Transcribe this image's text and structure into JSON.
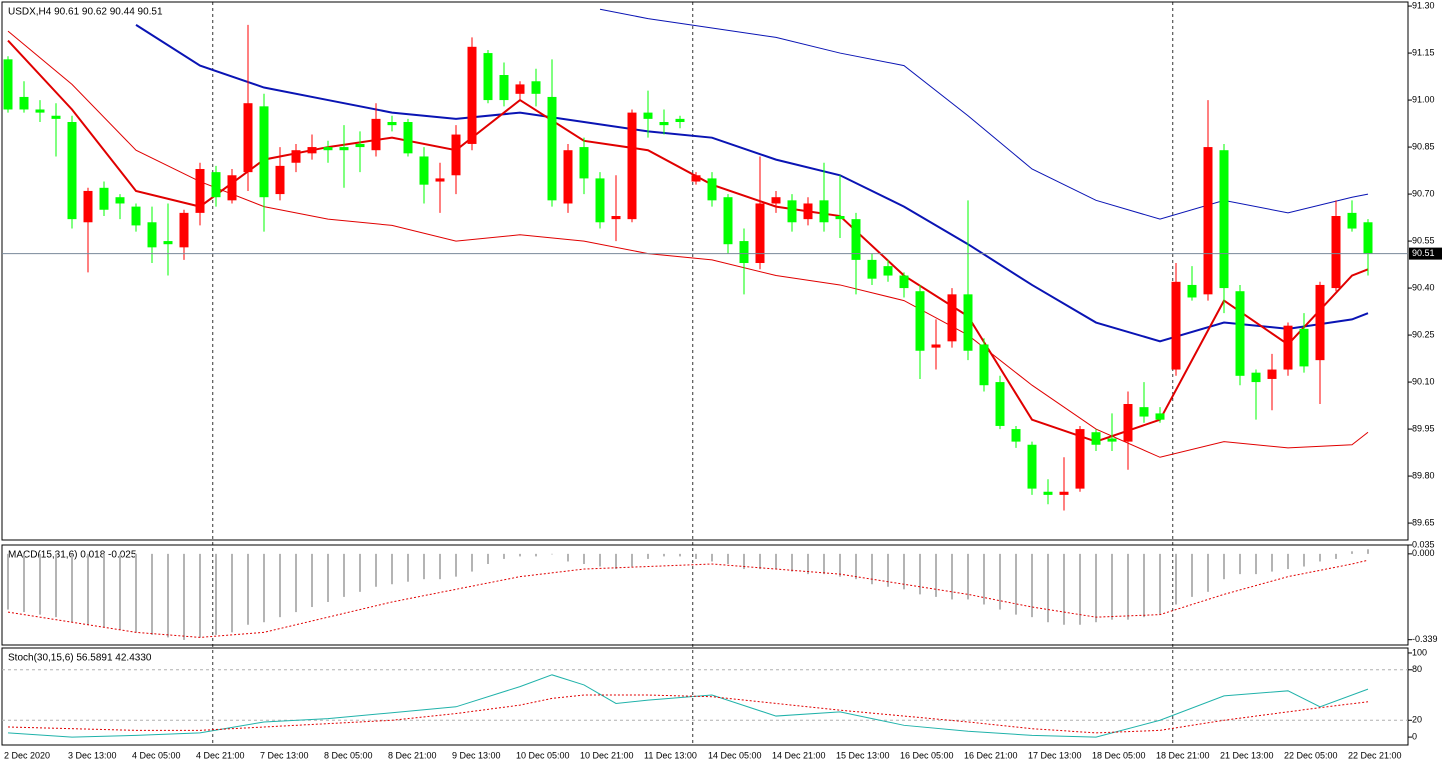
{
  "chart_data": [
    {
      "type": "candlestick",
      "title": "USDX,H4  90.61 90.62 90.44 90.51",
      "categories": [
        "2 Dec 2020",
        null,
        null,
        null,
        "3 Dec 13:00",
        null,
        null,
        null,
        "4 Dec 05:00",
        null,
        null,
        null,
        "4 Dec 21:00",
        null,
        null,
        null,
        "7 Dec 13:00",
        null,
        null,
        null,
        "8 Dec 05:00",
        null,
        null,
        null,
        "8 Dec 21:00",
        null,
        null,
        null,
        "9 Dec 13:00",
        null,
        null,
        null,
        "10 Dec 05:00",
        null,
        null,
        null,
        "10 Dec 21:00",
        null,
        null,
        null,
        "11 Dec 13:00",
        null,
        null,
        null,
        "14 Dec 05:00",
        null,
        null,
        null,
        "14 Dec 21:00",
        null,
        null,
        null,
        "15 Dec 13:00",
        null,
        null,
        null,
        "16 Dec 05:00",
        null,
        null,
        null,
        "16 Dec 21:00",
        null,
        null,
        null,
        "17 Dec 13:00",
        null,
        null,
        null,
        "18 Dec 05:00",
        null,
        null,
        null,
        "18 Dec 21:00",
        null,
        null,
        null,
        "21 Dec 13:00",
        null,
        null,
        null,
        "22 Dec 05:00",
        null,
        null,
        null,
        "22 Dec 21:00",
        null
      ],
      "open": [
        91.13,
        91.01,
        90.97,
        90.95,
        90.93,
        90.61,
        90.72,
        90.69,
        90.66,
        90.61,
        90.55,
        90.53,
        90.64,
        90.77,
        90.68,
        90.77,
        90.98,
        90.7,
        90.8,
        90.83,
        90.85,
        90.85,
        90.86,
        90.84,
        90.93,
        90.93,
        90.82,
        90.74,
        90.76,
        90.86,
        91.15,
        91.08,
        91.02,
        91.06,
        91.01,
        90.67,
        90.85,
        90.75,
        90.62,
        90.62,
        90.96,
        90.93,
        90.94,
        90.74,
        90.75,
        90.69,
        90.55,
        90.48,
        90.67,
        90.68,
        90.62,
        90.68,
        90.63,
        90.62,
        90.49,
        90.47,
        90.44,
        90.39,
        90.21,
        90.23,
        90.38,
        90.22,
        90.1,
        89.95,
        89.9,
        89.75,
        89.74,
        89.76,
        89.94,
        89.92,
        89.91,
        90.02,
        90.0,
        90.14,
        90.41,
        90.38,
        90.84,
        90.39,
        90.13,
        90.11,
        90.14,
        90.27,
        90.17,
        90.4,
        90.64,
        90.61
      ],
      "high": [
        91.14,
        91.06,
        91.0,
        90.99,
        90.95,
        90.72,
        90.74,
        90.7,
        90.67,
        90.66,
        90.67,
        90.65,
        90.8,
        90.79,
        90.78,
        91.24,
        91.02,
        90.85,
        90.86,
        90.89,
        90.87,
        90.92,
        90.9,
        90.99,
        90.95,
        90.94,
        90.85,
        90.8,
        90.92,
        91.2,
        91.16,
        91.12,
        91.06,
        91.1,
        91.13,
        90.86,
        90.88,
        90.77,
        90.76,
        90.97,
        91.03,
        90.97,
        90.95,
        90.77,
        90.77,
        90.7,
        90.59,
        90.82,
        90.71,
        90.7,
        90.69,
        90.8,
        90.76,
        90.64,
        90.51,
        90.49,
        90.45,
        90.41,
        90.3,
        90.4,
        90.68,
        90.24,
        90.12,
        89.96,
        89.91,
        89.79,
        89.86,
        89.96,
        89.95,
        90.0,
        90.07,
        90.1,
        90.02,
        90.48,
        90.47,
        91.0,
        90.86,
        90.41,
        90.14,
        90.19,
        90.29,
        90.32,
        90.42,
        90.68,
        90.68,
        90.62
      ],
      "low": [
        90.96,
        90.96,
        90.93,
        90.82,
        90.59,
        90.45,
        90.63,
        90.62,
        90.58,
        90.48,
        90.44,
        90.49,
        90.6,
        90.66,
        90.67,
        90.71,
        90.58,
        90.68,
        90.77,
        90.81,
        90.8,
        90.72,
        90.77,
        90.82,
        90.9,
        90.82,
        90.67,
        90.64,
        90.7,
        90.84,
        90.99,
        90.98,
        91.0,
        90.98,
        90.66,
        90.64,
        90.7,
        90.59,
        90.55,
        90.61,
        90.88,
        90.89,
        90.91,
        90.73,
        90.66,
        90.51,
        90.38,
        90.46,
        90.64,
        90.58,
        90.6,
        90.58,
        90.56,
        90.38,
        90.41,
        90.42,
        90.37,
        90.11,
        90.14,
        90.21,
        90.17,
        90.07,
        89.95,
        89.89,
        89.74,
        89.71,
        89.69,
        89.75,
        89.88,
        89.88,
        89.82,
        89.97,
        89.97,
        90.12,
        90.36,
        90.36,
        90.32,
        90.09,
        89.98,
        90.01,
        90.12,
        90.13,
        90.03,
        90.39,
        90.58,
        90.44
      ],
      "close": [
        90.97,
        90.97,
        90.96,
        90.94,
        90.62,
        90.71,
        90.65,
        90.67,
        90.6,
        90.53,
        90.54,
        90.64,
        90.78,
        90.69,
        90.76,
        90.99,
        90.69,
        90.79,
        90.84,
        90.85,
        90.84,
        90.84,
        90.85,
        90.94,
        90.92,
        90.83,
        90.73,
        90.75,
        90.89,
        91.17,
        91.0,
        91.0,
        91.05,
        91.02,
        90.68,
        90.84,
        90.75,
        90.61,
        90.63,
        90.96,
        90.94,
        90.92,
        90.93,
        90.76,
        90.68,
        90.54,
        90.48,
        90.67,
        90.69,
        90.61,
        90.67,
        90.61,
        90.62,
        90.49,
        90.43,
        90.44,
        90.4,
        90.2,
        90.22,
        90.38,
        90.2,
        90.09,
        89.96,
        89.91,
        89.76,
        89.74,
        89.75,
        89.95,
        89.9,
        89.91,
        90.03,
        89.99,
        89.98,
        90.42,
        90.37,
        90.85,
        90.4,
        90.12,
        90.1,
        90.14,
        90.28,
        90.15,
        90.41,
        90.63,
        90.59,
        90.51
      ],
      "up_color": "#ff0000",
      "down_color": "#00ff00",
      "lines": [
        {
          "color": "#0a14b4",
          "width": 2,
          "x": [
            8,
            12,
            16,
            20,
            24,
            28,
            32,
            36,
            40,
            44,
            48,
            52,
            56,
            60,
            64,
            68,
            72,
            76,
            80,
            84,
            85
          ],
          "values": [
            91.24,
            91.11,
            91.04,
            91.0,
            90.96,
            90.94,
            90.96,
            90.93,
            90.9,
            90.88,
            90.81,
            90.76,
            90.66,
            90.54,
            90.41,
            90.29,
            90.23,
            90.29,
            90.27,
            90.3,
            90.32
          ]
        },
        {
          "color": "#e00000",
          "width": 2,
          "x": [
            0,
            4,
            8,
            12,
            16,
            20,
            24,
            28,
            32,
            36,
            40,
            44,
            48,
            52,
            56,
            60,
            64,
            68,
            72,
            76,
            80,
            84,
            85
          ],
          "values": [
            91.19,
            90.97,
            90.71,
            90.66,
            90.81,
            90.85,
            90.88,
            90.84,
            91.0,
            90.87,
            90.84,
            90.73,
            90.66,
            90.63,
            90.44,
            90.31,
            89.98,
            89.91,
            89.98,
            90.36,
            90.22,
            90.44,
            90.46
          ]
        },
        {
          "color": "#0a14b4",
          "width": 1,
          "x": [
            37,
            40,
            44,
            48,
            52,
            56,
            60,
            64,
            68,
            72,
            76,
            80,
            84,
            85
          ],
          "values": [
            91.29,
            91.26,
            91.23,
            91.2,
            91.15,
            91.11,
            90.95,
            90.78,
            90.68,
            90.62,
            90.68,
            90.64,
            90.69,
            90.7
          ]
        },
        {
          "color": "#e00000",
          "width": 1,
          "x": [
            0,
            4,
            8,
            12,
            16,
            20,
            24,
            28,
            32,
            36,
            40,
            44,
            48,
            52,
            56,
            60,
            64,
            68,
            72,
            76,
            80,
            84,
            85
          ],
          "values": [
            91.22,
            91.05,
            90.84,
            90.74,
            90.66,
            90.62,
            90.6,
            90.55,
            90.57,
            90.55,
            90.51,
            90.49,
            90.44,
            90.41,
            90.36,
            90.25,
            90.09,
            89.95,
            89.86,
            89.91,
            89.89,
            89.9,
            89.94
          ]
        }
      ],
      "ylim": [
        89.596,
        91.313
      ],
      "yticks": [
        {
          "value": 91.3,
          "label": "91.30"
        },
        91.15,
        {
          "value": 91,
          "label": "91.00"
        },
        90.85,
        {
          "value": 90.7,
          "label": "90.70"
        },
        90.55,
        {
          "value": 90.4,
          "label": "90.40"
        },
        90.25,
        {
          "value": 90.1,
          "label": "90.10"
        },
        89.95,
        {
          "value": 89.8,
          "label": "89.80"
        },
        89.65
      ]
    },
    {
      "type": "bar",
      "title": "MACD(15,31,6) 0.018 -0.025",
      "color": "#b4b4b4",
      "values": [
        -0.22,
        -0.23,
        -0.24,
        -0.25,
        -0.27,
        -0.28,
        -0.29,
        -0.3,
        -0.31,
        -0.32,
        -0.33,
        -0.34,
        -0.33,
        -0.32,
        -0.31,
        -0.28,
        -0.27,
        -0.25,
        -0.23,
        -0.21,
        -0.19,
        -0.17,
        -0.15,
        -0.13,
        -0.12,
        -0.11,
        -0.1,
        -0.1,
        -0.09,
        -0.07,
        -0.04,
        -0.02,
        -0.01,
        -0.01,
        0.0,
        -0.03,
        -0.04,
        -0.05,
        -0.06,
        -0.05,
        -0.02,
        -0.01,
        -0.01,
        -0.02,
        -0.03,
        -0.04,
        -0.06,
        -0.06,
        -0.06,
        -0.07,
        -0.08,
        -0.08,
        -0.09,
        -0.1,
        -0.12,
        -0.13,
        -0.14,
        -0.16,
        -0.17,
        -0.18,
        -0.18,
        -0.2,
        -0.22,
        -0.24,
        -0.25,
        -0.27,
        -0.28,
        -0.28,
        -0.27,
        -0.26,
        -0.26,
        -0.25,
        -0.24,
        -0.2,
        -0.17,
        -0.15,
        -0.1,
        -0.08,
        -0.08,
        -0.07,
        -0.06,
        -0.05,
        -0.03,
        -0.02,
        0.01,
        0.018
      ],
      "lines": [
        {
          "color": "#e00000",
          "width": 1,
          "dash": true,
          "x": [
            0,
            4,
            8,
            12,
            16,
            20,
            24,
            28,
            32,
            36,
            40,
            44,
            48,
            52,
            56,
            60,
            64,
            68,
            72,
            76,
            80,
            84,
            85
          ],
          "values": [
            -0.23,
            -0.27,
            -0.31,
            -0.33,
            -0.31,
            -0.25,
            -0.19,
            -0.14,
            -0.09,
            -0.06,
            -0.05,
            -0.04,
            -0.06,
            -0.08,
            -0.12,
            -0.16,
            -0.21,
            -0.25,
            -0.24,
            -0.16,
            -0.09,
            -0.04,
            -0.025
          ]
        }
      ],
      "ylim": [
        -0.36,
        0.035
      ],
      "yticks": [
        0.035,
        {
          "value": 0,
          "label": "0.000"
        },
        -0.339
      ]
    },
    {
      "type": "line",
      "title": "Stoch(30,15,6) 56.5891 42.4330",
      "lines": [
        {
          "color": "#20b2aa",
          "width": 1,
          "x": [
            0,
            4,
            8,
            12,
            16,
            20,
            24,
            28,
            32,
            34,
            36,
            38,
            40,
            44,
            48,
            52,
            56,
            60,
            64,
            68,
            72,
            76,
            80,
            82,
            85
          ],
          "values": [
            5,
            0,
            2,
            5,
            18,
            22,
            29,
            36,
            60,
            74,
            62,
            40,
            44,
            50,
            25,
            30,
            14,
            7,
            2,
            0,
            20,
            49,
            55,
            36,
            57
          ]
        },
        {
          "color": "#e00000",
          "width": 1,
          "dash": true,
          "x": [
            0,
            4,
            8,
            12,
            16,
            20,
            24,
            28,
            32,
            34,
            36,
            38,
            40,
            44,
            48,
            52,
            56,
            60,
            64,
            68,
            72,
            76,
            80,
            82,
            85
          ],
          "values": [
            12,
            10,
            8,
            8,
            12,
            16,
            20,
            28,
            38,
            46,
            50,
            50,
            50,
            48,
            40,
            32,
            25,
            18,
            10,
            5,
            8,
            20,
            30,
            35,
            42
          ]
        }
      ],
      "levels": [
        80,
        20
      ],
      "ylim": [
        -9.4,
        105.9
      ],
      "yticks": [
        100,
        80,
        20,
        0
      ]
    }
  ]
}
